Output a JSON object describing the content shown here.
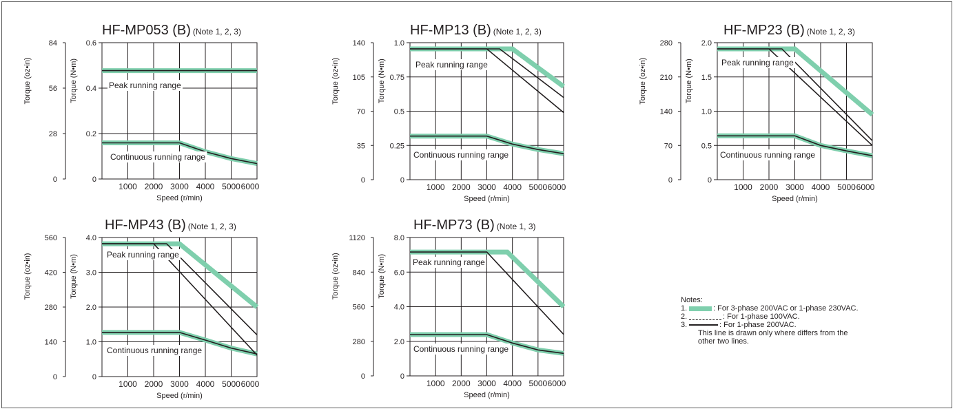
{
  "chart_data": [
    {
      "type": "line",
      "title": "HF-MP053 (B)",
      "title_note": "(Note 1, 2, 3)",
      "xlabel": "Speed (r/min)",
      "ylabel_left": "Torque (oz•in)",
      "ylabel_right": "Torque (N•m)",
      "xlim": [
        0,
        6000
      ],
      "ylim": [
        0,
        0.6
      ],
      "x_ticks": [
        "1000",
        "2000",
        "3000",
        "4000",
        "5000",
        "6000"
      ],
      "y_ticks": [
        "0",
        "0.2",
        "0.4",
        "0.6"
      ],
      "y_ticks_oz": [
        "0",
        "28",
        "56",
        "84"
      ],
      "peak_label": "Peak running range",
      "cont_label": "Continuous running range",
      "series": [
        {
          "name": "",
          "style": "green",
          "points": [
            [
              0,
              0.477
            ],
            [
              6000,
              0.477
            ]
          ]
        },
        {
          "name": "",
          "style": "black",
          "points": [
            [
              0,
              0.477
            ],
            [
              6000,
              0.477
            ]
          ]
        },
        {
          "name": "",
          "style": "green",
          "points": [
            [
              0,
              0.159
            ],
            [
              3000,
              0.159
            ],
            [
              4000,
              0.12
            ],
            [
              5000,
              0.09
            ],
            [
              6000,
              0.068
            ]
          ]
        },
        {
          "name": "",
          "style": "black",
          "points": [
            [
              0,
              0.159
            ],
            [
              3000,
              0.159
            ],
            [
              4000,
              0.12
            ],
            [
              5000,
              0.09
            ],
            [
              6000,
              0.068
            ]
          ]
        }
      ]
    },
    {
      "type": "line",
      "title": "HF-MP13 (B)",
      "title_note": "(Note 1, 2, 3)",
      "xlabel": "Speed (r/min)",
      "ylabel_left": "Torque (oz•in)",
      "ylabel_right": "Torque (N•m)",
      "xlim": [
        0,
        6000
      ],
      "ylim": [
        0,
        1.0
      ],
      "x_ticks": [
        "1000",
        "2000",
        "3000",
        "4000",
        "5000",
        "6000"
      ],
      "y_ticks": [
        "0",
        "0.25",
        "0.5",
        "0.75",
        "1.0"
      ],
      "y_ticks_oz": [
        "0",
        "35",
        "70",
        "105",
        "140"
      ],
      "peak_label": "Peak running range",
      "cont_label": "Continuous running range",
      "series": [
        {
          "name": "",
          "style": "green",
          "points": [
            [
              0,
              0.955
            ],
            [
              4000,
              0.955
            ],
            [
              6000,
              0.68
            ]
          ]
        },
        {
          "name": "",
          "style": "black",
          "points": [
            [
              0,
              0.955
            ],
            [
              3500,
              0.955
            ],
            [
              6000,
              0.6
            ]
          ]
        },
        {
          "name": "",
          "style": "black",
          "points": [
            [
              0,
              0.955
            ],
            [
              3000,
              0.955
            ],
            [
              6000,
              0.49
            ]
          ]
        },
        {
          "name": "",
          "style": "green",
          "points": [
            [
              0,
              0.318
            ],
            [
              3000,
              0.318
            ],
            [
              4000,
              0.26
            ],
            [
              5000,
              0.22
            ],
            [
              6000,
              0.19
            ]
          ]
        },
        {
          "name": "",
          "style": "black",
          "points": [
            [
              0,
              0.318
            ],
            [
              3000,
              0.318
            ],
            [
              4000,
              0.26
            ],
            [
              5000,
              0.22
            ],
            [
              6000,
              0.19
            ]
          ]
        }
      ]
    },
    {
      "type": "line",
      "title": "HF-MP23 (B)",
      "title_note": "(Note 1, 2, 3)",
      "xlabel": "Speed (r/min)",
      "ylabel_left": "Torque (oz•in)",
      "ylabel_right": "Torque (N•m)",
      "xlim": [
        0,
        6000
      ],
      "ylim": [
        0,
        2.0
      ],
      "x_ticks": [
        "1000",
        "2000",
        "3000",
        "4000",
        "5000",
        "6000"
      ],
      "y_ticks": [
        "0",
        "0.5",
        "1.0",
        "1.5",
        "2.0"
      ],
      "y_ticks_oz": [
        "0",
        "70",
        "140",
        "210",
        "280"
      ],
      "peak_label": "Peak running range",
      "cont_label": "Continuous running range",
      "series": [
        {
          "name": "",
          "style": "green",
          "points": [
            [
              0,
              1.91
            ],
            [
              3000,
              1.91
            ],
            [
              6000,
              0.95
            ]
          ]
        },
        {
          "name": "",
          "style": "black",
          "points": [
            [
              0,
              1.91
            ],
            [
              2500,
              1.91
            ],
            [
              6000,
              0.57
            ]
          ]
        },
        {
          "name": "",
          "style": "black",
          "points": [
            [
              0,
              1.91
            ],
            [
              2000,
              1.91
            ],
            [
              6000,
              0.5
            ]
          ]
        },
        {
          "name": "",
          "style": "green",
          "points": [
            [
              0,
              0.64
            ],
            [
              3000,
              0.64
            ],
            [
              4000,
              0.5
            ],
            [
              5000,
              0.42
            ],
            [
              6000,
              0.35
            ]
          ]
        },
        {
          "name": "",
          "style": "black",
          "points": [
            [
              0,
              0.64
            ],
            [
              3000,
              0.64
            ],
            [
              4000,
              0.5
            ],
            [
              5000,
              0.42
            ],
            [
              6000,
              0.35
            ]
          ]
        }
      ]
    },
    {
      "type": "line",
      "title": "HF-MP43 (B)",
      "title_note": "(Note 1, 2, 3)",
      "xlabel": "Speed (r/min)",
      "ylabel_left": "Torque (oz•in)",
      "ylabel_right": "Torque (N•m)",
      "xlim": [
        0,
        6000
      ],
      "ylim": [
        0,
        4.0
      ],
      "x_ticks": [
        "1000",
        "2000",
        "3000",
        "4000",
        "5000",
        "6000"
      ],
      "y_ticks": [
        "0",
        "1.0",
        "2.0",
        "3.0",
        "4.0"
      ],
      "y_ticks_oz": [
        "0",
        "140",
        "280",
        "420",
        "560"
      ],
      "peak_label": "Peak running range",
      "cont_label": "Continuous running range",
      "series": [
        {
          "name": "",
          "style": "green",
          "points": [
            [
              0,
              3.82
            ],
            [
              3000,
              3.82
            ],
            [
              6000,
              2.0
            ]
          ]
        },
        {
          "name": "",
          "style": "black",
          "points": [
            [
              0,
              3.82
            ],
            [
              2500,
              3.82
            ],
            [
              6000,
              1.2
            ]
          ]
        },
        {
          "name": "",
          "style": "black",
          "points": [
            [
              0,
              3.82
            ],
            [
              2000,
              3.82
            ],
            [
              6000,
              0.62
            ]
          ]
        },
        {
          "name": "",
          "style": "green",
          "points": [
            [
              0,
              1.27
            ],
            [
              3000,
              1.27
            ],
            [
              4000,
              1.05
            ],
            [
              5000,
              0.82
            ],
            [
              6000,
              0.65
            ]
          ]
        },
        {
          "name": "",
          "style": "black",
          "points": [
            [
              0,
              1.27
            ],
            [
              3000,
              1.27
            ],
            [
              4000,
              1.05
            ],
            [
              5000,
              0.82
            ],
            [
              6000,
              0.65
            ]
          ]
        }
      ]
    },
    {
      "type": "line",
      "title": "HF-MP73 (B)",
      "title_note": "(Note 1, 3)",
      "xlabel": "Speed (r/min)",
      "ylabel_left": "Torque (oz•in)",
      "ylabel_right": "Torque (N•m)",
      "xlim": [
        0,
        6000
      ],
      "ylim": [
        0,
        8.0
      ],
      "x_ticks": [
        "1000",
        "2000",
        "3000",
        "4000",
        "5000",
        "6000"
      ],
      "y_ticks": [
        "0",
        "2.0",
        "4.0",
        "6.0",
        "8.0"
      ],
      "y_ticks_oz": [
        "0",
        "280",
        "560",
        "840",
        "1120"
      ],
      "peak_label": "Peak running range",
      "cont_label": "Continuous running range",
      "series": [
        {
          "name": "",
          "style": "green",
          "points": [
            [
              0,
              7.16
            ],
            [
              3800,
              7.16
            ],
            [
              6000,
              4.0
            ]
          ]
        },
        {
          "name": "",
          "style": "black",
          "points": [
            [
              0,
              7.16
            ],
            [
              3000,
              7.16
            ],
            [
              6000,
              2.4
            ]
          ]
        },
        {
          "name": "",
          "style": "green",
          "points": [
            [
              0,
              2.39
            ],
            [
              3000,
              2.39
            ],
            [
              4000,
              1.9
            ],
            [
              5000,
              1.5
            ],
            [
              6000,
              1.3
            ]
          ]
        },
        {
          "name": "",
          "style": "black",
          "points": [
            [
              0,
              2.39
            ],
            [
              3000,
              2.39
            ],
            [
              4000,
              1.9
            ],
            [
              5000,
              1.5
            ],
            [
              6000,
              1.3
            ]
          ]
        }
      ]
    }
  ],
  "notes": {
    "heading": "Notes:",
    "items": [
      {
        "num": "1.",
        "swatch": "green",
        "text": ": For 3-phase 200VAC or 1-phase 230VAC."
      },
      {
        "num": "2.",
        "swatch": "dash",
        "text": ": For 1-phase 100VAC."
      },
      {
        "num": "3.",
        "swatch": "black",
        "text": ": For 1-phase 200VAC."
      }
    ],
    "extra_lines": [
      "This line is drawn only where differs from the",
      "other two lines."
    ]
  },
  "colors": {
    "green": "#7fcfad",
    "black": "#231f20"
  }
}
